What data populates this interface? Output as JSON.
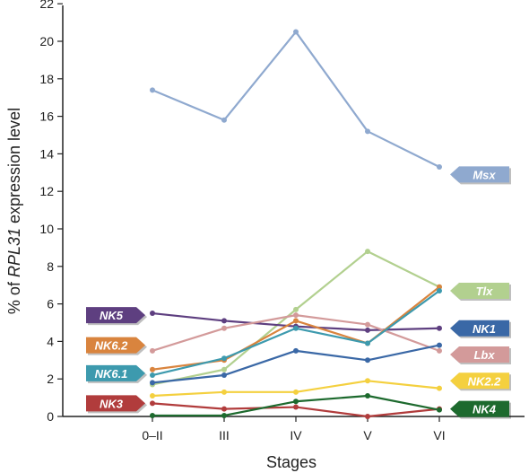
{
  "chart_data": {
    "type": "line",
    "xlabel": "Stages",
    "ylabel_prefix": "% of ",
    "ylabel_gene": "RPL31",
    "ylabel_suffix": " expression level",
    "categories": [
      "0–II",
      "III",
      "IV",
      "V",
      "VI"
    ],
    "yticks": [
      0,
      2,
      4,
      6,
      8,
      10,
      12,
      14,
      16,
      18,
      20,
      22
    ],
    "ylim": [
      0,
      22
    ],
    "grid": false,
    "legend": "inline callout labels",
    "series": [
      {
        "name": "Msx",
        "color": "#8fa9cf",
        "values": [
          17.4,
          15.8,
          20.5,
          15.2,
          13.3
        ],
        "label_side": "right",
        "label_y": 12.9
      },
      {
        "name": "Tlx",
        "color": "#b2d08f",
        "values": [
          1.7,
          2.5,
          5.7,
          8.8,
          6.9
        ],
        "label_side": "right",
        "label_y": 6.7
      },
      {
        "name": "NK5",
        "color": "#5e3f80",
        "values": [
          5.5,
          5.1,
          4.8,
          4.6,
          4.7
        ],
        "label_side": "left",
        "label_y": 5.4
      },
      {
        "name": "Lbx",
        "color": "#d39a9a",
        "values": [
          3.5,
          4.7,
          5.4,
          4.9,
          3.5
        ],
        "label_side": "right",
        "label_y": 3.3
      },
      {
        "name": "NK6.2",
        "color": "#d9843e",
        "values": [
          2.5,
          3.0,
          5.1,
          3.9,
          6.9
        ],
        "label_side": "left",
        "label_y": 3.8
      },
      {
        "name": "NK6.1",
        "color": "#3d9aae",
        "values": [
          2.2,
          3.1,
          4.7,
          3.9,
          6.7
        ],
        "label_side": "left",
        "label_y": 2.3
      },
      {
        "name": "NK1",
        "color": "#3a68a6",
        "values": [
          1.8,
          2.2,
          3.5,
          3.0,
          3.8
        ],
        "label_side": "right",
        "label_y": 4.7
      },
      {
        "name": "NK2.2",
        "color": "#f4d03f",
        "values": [
          1.1,
          1.3,
          1.3,
          1.9,
          1.5
        ],
        "label_side": "right",
        "label_y": 1.9
      },
      {
        "name": "NK3",
        "color": "#b13c3c",
        "values": [
          0.7,
          0.4,
          0.5,
          0.0,
          0.4
        ],
        "label_side": "left",
        "label_y": 0.7
      },
      {
        "name": "NK4",
        "color": "#1d6a2e",
        "values": [
          0.05,
          0.05,
          0.8,
          1.1,
          0.35
        ],
        "label_side": "right",
        "label_y": 0.4
      }
    ]
  }
}
